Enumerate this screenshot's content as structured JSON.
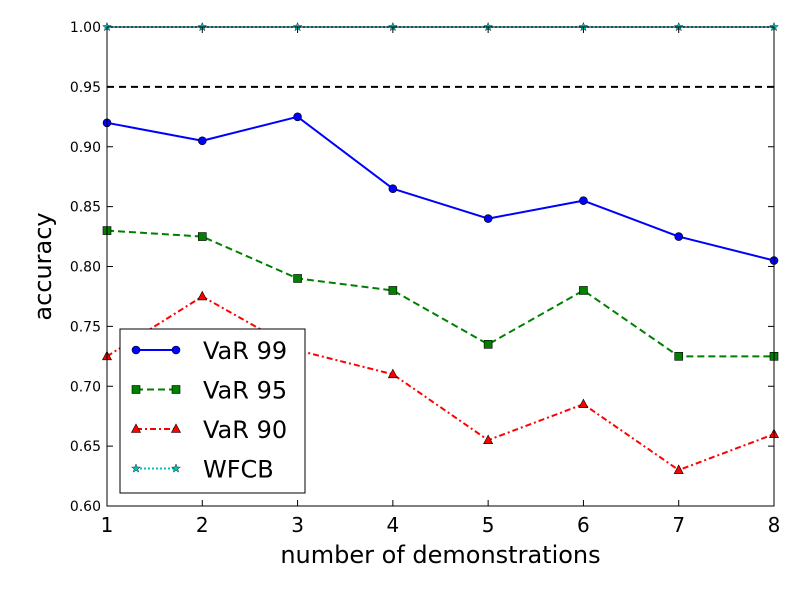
{
  "chart_data": {
    "type": "line",
    "title": "",
    "xlabel": "number of demonstrations",
    "ylabel": "accuracy",
    "xlim": [
      1,
      8
    ],
    "ylim": [
      0.6,
      1.0
    ],
    "x": [
      1,
      2,
      3,
      4,
      5,
      6,
      7,
      8
    ],
    "x_ticks": [
      "1",
      "2",
      "3",
      "4",
      "5",
      "6",
      "7",
      "8"
    ],
    "y_ticks": [
      "0.60",
      "0.65",
      "0.70",
      "0.75",
      "0.80",
      "0.85",
      "0.90",
      "0.95",
      "1.00"
    ],
    "y_tick_values": [
      0.6,
      0.65,
      0.7,
      0.75,
      0.8,
      0.85,
      0.9,
      0.95,
      1.0
    ],
    "grid": false,
    "legend_position": "lower-left",
    "reference_line": {
      "y": 0.95,
      "style": "dashed",
      "color": "#000000"
    },
    "series": [
      {
        "name": "VaR 99",
        "color": "#0000ff",
        "marker": "circle",
        "line_style": "solid",
        "values": [
          0.92,
          0.905,
          0.925,
          0.865,
          0.84,
          0.855,
          0.825,
          0.805
        ]
      },
      {
        "name": "VaR 95",
        "color": "#008000",
        "marker": "square",
        "line_style": "dashed",
        "values": [
          0.83,
          0.825,
          0.79,
          0.78,
          0.735,
          0.78,
          0.725,
          0.725
        ]
      },
      {
        "name": "VaR 90",
        "color": "#ff0000",
        "marker": "triangle",
        "line_style": "dashdot",
        "values": [
          0.725,
          0.775,
          0.73,
          0.71,
          0.655,
          0.685,
          0.63,
          0.66
        ]
      },
      {
        "name": "WFCB",
        "color": "#00bfbf",
        "marker": "star",
        "line_style": "dotted",
        "values": [
          1.0,
          1.0,
          1.0,
          1.0,
          1.0,
          1.0,
          1.0,
          1.0
        ]
      }
    ]
  }
}
